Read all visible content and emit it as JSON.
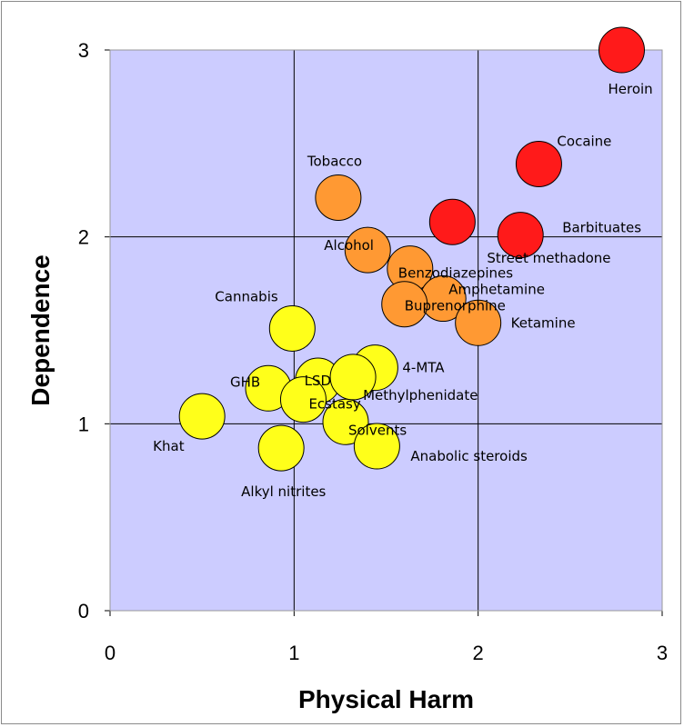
{
  "chart_data": {
    "type": "scatter",
    "title": "",
    "xlabel": "Physical Harm",
    "ylabel": "Dependence",
    "xlim": [
      0,
      3
    ],
    "ylim": [
      0,
      3
    ],
    "xticks": [
      "0",
      "1",
      "2",
      "3"
    ],
    "yticks": [
      "0",
      "1",
      "2",
      "3"
    ],
    "grid": true,
    "plot_background": "#ccccff",
    "colors": {
      "red": "#ff1a1a",
      "orange": "#ff9933",
      "yellow": "#ffff1a"
    },
    "points": [
      {
        "label": "Heroin",
        "x": 2.78,
        "y": 3.0,
        "color": "red"
      },
      {
        "label": "Cocaine",
        "x": 2.33,
        "y": 2.39,
        "color": "red"
      },
      {
        "label": "Street methadone",
        "x": 1.86,
        "y": 2.08,
        "color": "red"
      },
      {
        "label": "Barbituates",
        "x": 2.23,
        "y": 2.01,
        "color": "red"
      },
      {
        "label": "Tobacco",
        "x": 1.24,
        "y": 2.21,
        "color": "orange"
      },
      {
        "label": "Alcohol",
        "x": 1.4,
        "y": 1.93,
        "color": "orange"
      },
      {
        "label": "Benzodiazepines",
        "x": 1.63,
        "y": 1.83,
        "color": "orange"
      },
      {
        "label": "Amphetamine",
        "x": 1.81,
        "y": 1.67,
        "color": "orange"
      },
      {
        "label": "Buprenorphine",
        "x": 1.6,
        "y": 1.64,
        "color": "orange"
      },
      {
        "label": "Ketamine",
        "x": 2.0,
        "y": 1.54,
        "color": "orange"
      },
      {
        "label": "Cannabis",
        "x": 0.99,
        "y": 1.51,
        "color": "yellow"
      },
      {
        "label": "4-MTA",
        "x": 1.44,
        "y": 1.3,
        "color": "yellow"
      },
      {
        "label": "LSD",
        "x": 1.13,
        "y": 1.23,
        "color": "yellow"
      },
      {
        "label": "Methylphenidate",
        "x": 1.32,
        "y": 1.25,
        "color": "yellow"
      },
      {
        "label": "GHB",
        "x": 0.86,
        "y": 1.19,
        "color": "yellow"
      },
      {
        "label": "Ecstasy",
        "x": 1.05,
        "y": 1.13,
        "color": "yellow"
      },
      {
        "label": "Solvents",
        "x": 1.28,
        "y": 1.01,
        "color": "yellow"
      },
      {
        "label": "Khat",
        "x": 0.5,
        "y": 1.04,
        "color": "yellow"
      },
      {
        "label": "Alkyl nitrites",
        "x": 0.93,
        "y": 0.87,
        "color": "yellow"
      },
      {
        "label": "Anabolic steroids",
        "x": 1.45,
        "y": 0.88,
        "color": "yellow"
      }
    ]
  }
}
